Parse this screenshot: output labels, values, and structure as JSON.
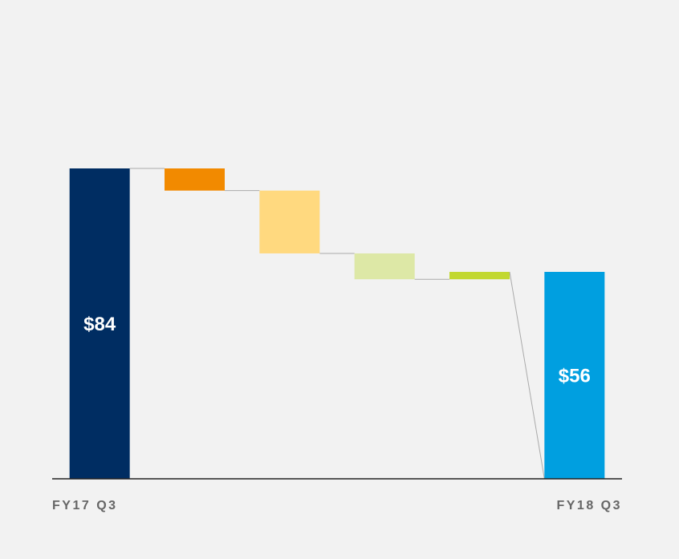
{
  "chart_data": {
    "type": "waterfall",
    "categories": [
      "FY17 Q3",
      null,
      null,
      null,
      null,
      "FY18 Q3"
    ],
    "values": [
      84,
      -6,
      -17,
      -7,
      2,
      56
    ],
    "value_labels": [
      "$84",
      null,
      null,
      null,
      null,
      "$56"
    ],
    "totals": [
      true,
      false,
      false,
      false,
      false,
      true
    ],
    "colors": [
      "#002d62",
      "#f28a00",
      "#ffd97f",
      "#dde8a6",
      "#c2d831",
      "#009fe0"
    ]
  }
}
